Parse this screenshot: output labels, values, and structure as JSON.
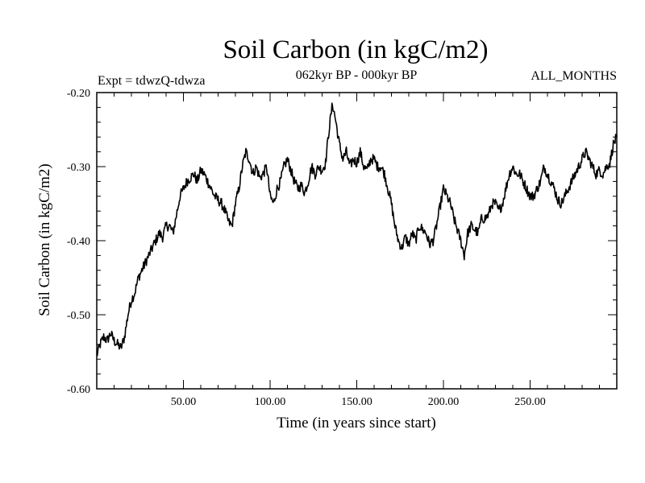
{
  "chart_data": {
    "type": "line",
    "title": "Soil Carbon (in kgC/m2)",
    "header_left": "Expt = tdwzQ-tdwza",
    "header_center": "062kyr BP - 000kyr BP",
    "header_right": "ALL_MONTHS",
    "xlabel": "Time (in years since start)",
    "ylabel": "Soil Carbon (in kgC/m2)",
    "xlim": [
      0,
      300
    ],
    "ylim": [
      -0.6,
      -0.2
    ],
    "x_ticks": [
      50,
      100,
      150,
      200,
      250
    ],
    "x_tick_labels": [
      "50.00",
      "100.00",
      "150.00",
      "200.00",
      "250.00"
    ],
    "y_ticks": [
      -0.6,
      -0.5,
      -0.4,
      -0.3,
      -0.2
    ],
    "y_tick_labels": [
      "-0.60",
      "-0.50",
      "-0.40",
      "-0.30",
      "-0.20"
    ],
    "line_color": "#000000",
    "series": [
      {
        "name": "Soil Carbon",
        "x": [
          0,
          2,
          4,
          6,
          8,
          10,
          12,
          14,
          16,
          18,
          20,
          22,
          24,
          26,
          28,
          30,
          32,
          34,
          36,
          38,
          40,
          42,
          44,
          46,
          48,
          50,
          52,
          54,
          56,
          58,
          60,
          62,
          64,
          66,
          68,
          70,
          72,
          74,
          76,
          78,
          80,
          82,
          84,
          86,
          88,
          90,
          92,
          94,
          96,
          98,
          100,
          102,
          104,
          106,
          108,
          110,
          112,
          114,
          116,
          118,
          120,
          122,
          124,
          126,
          128,
          130,
          132,
          134,
          136,
          138,
          140,
          142,
          144,
          146,
          148,
          150,
          152,
          154,
          156,
          158,
          160,
          162,
          164,
          166,
          168,
          170,
          172,
          174,
          176,
          178,
          180,
          182,
          184,
          186,
          188,
          190,
          192,
          194,
          196,
          198,
          200,
          202,
          204,
          206,
          208,
          210,
          212,
          214,
          216,
          218,
          220,
          222,
          224,
          226,
          228,
          230,
          232,
          234,
          236,
          238,
          240,
          242,
          244,
          246,
          248,
          250,
          252,
          254,
          256,
          258,
          260,
          262,
          264,
          266,
          268,
          270,
          272,
          274,
          276,
          278,
          280,
          282,
          284,
          286,
          288,
          290,
          292,
          294,
          296,
          298,
          300
        ],
        "y": [
          -0.555,
          -0.54,
          -0.53,
          -0.535,
          -0.525,
          -0.535,
          -0.54,
          -0.545,
          -0.53,
          -0.5,
          -0.48,
          -0.47,
          -0.45,
          -0.44,
          -0.43,
          -0.42,
          -0.41,
          -0.4,
          -0.39,
          -0.395,
          -0.38,
          -0.38,
          -0.39,
          -0.365,
          -0.34,
          -0.33,
          -0.32,
          -0.315,
          -0.31,
          -0.32,
          -0.305,
          -0.31,
          -0.32,
          -0.33,
          -0.34,
          -0.345,
          -0.35,
          -0.36,
          -0.375,
          -0.38,
          -0.35,
          -0.33,
          -0.3,
          -0.28,
          -0.29,
          -0.31,
          -0.3,
          -0.315,
          -0.31,
          -0.3,
          -0.34,
          -0.35,
          -0.33,
          -0.32,
          -0.3,
          -0.29,
          -0.305,
          -0.32,
          -0.33,
          -0.325,
          -0.335,
          -0.32,
          -0.3,
          -0.31,
          -0.3,
          -0.305,
          -0.295,
          -0.25,
          -0.215,
          -0.24,
          -0.27,
          -0.29,
          -0.28,
          -0.3,
          -0.29,
          -0.295,
          -0.28,
          -0.3,
          -0.305,
          -0.29,
          -0.29,
          -0.3,
          -0.3,
          -0.31,
          -0.33,
          -0.35,
          -0.38,
          -0.4,
          -0.41,
          -0.395,
          -0.405,
          -0.39,
          -0.4,
          -0.38,
          -0.385,
          -0.39,
          -0.405,
          -0.4,
          -0.38,
          -0.355,
          -0.33,
          -0.34,
          -0.35,
          -0.37,
          -0.385,
          -0.4,
          -0.42,
          -0.39,
          -0.38,
          -0.385,
          -0.39,
          -0.37,
          -0.37,
          -0.365,
          -0.35,
          -0.35,
          -0.36,
          -0.35,
          -0.33,
          -0.31,
          -0.3,
          -0.31,
          -0.31,
          -0.32,
          -0.33,
          -0.34,
          -0.34,
          -0.33,
          -0.32,
          -0.3,
          -0.31,
          -0.32,
          -0.33,
          -0.345,
          -0.35,
          -0.34,
          -0.33,
          -0.32,
          -0.31,
          -0.3,
          -0.29,
          -0.28,
          -0.29,
          -0.3,
          -0.31,
          -0.305,
          -0.31,
          -0.3,
          -0.295,
          -0.27,
          -0.26
        ]
      }
    ]
  }
}
